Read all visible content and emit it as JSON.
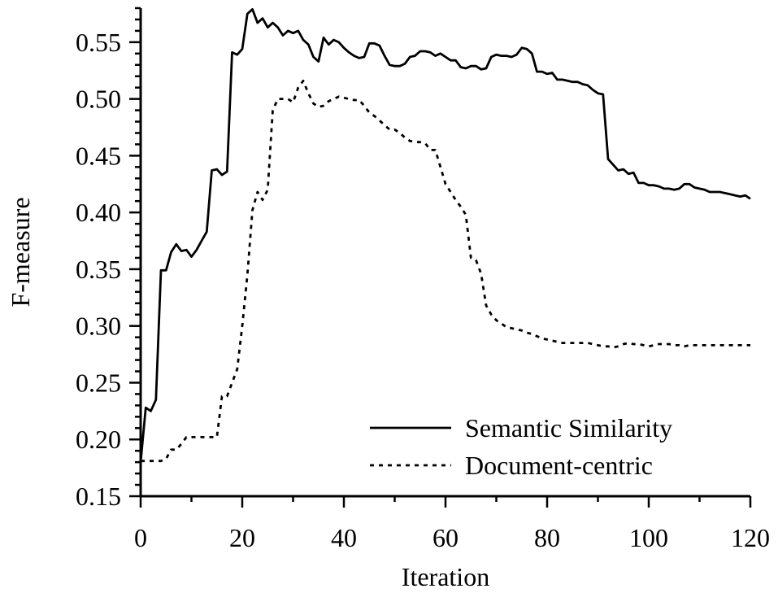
{
  "chart_data": {
    "type": "line",
    "title": "",
    "xlabel": "Iteration",
    "ylabel": "F-measure",
    "xlim": [
      0,
      120
    ],
    "ylim": [
      0.15,
      0.58
    ],
    "x_ticks": [
      0,
      20,
      40,
      60,
      80,
      100,
      120
    ],
    "x_tick_labels": [
      "0",
      "20",
      "40",
      "60",
      "80",
      "100",
      "120"
    ],
    "y_ticks": [
      0.15,
      0.2,
      0.25,
      0.3,
      0.35,
      0.4,
      0.45,
      0.5,
      0.55
    ],
    "y_tick_labels": [
      "0.15",
      "0.20",
      "0.25",
      "0.30",
      "0.35",
      "0.40",
      "0.45",
      "0.50",
      "0.55"
    ],
    "grid": false,
    "legend_position": "bottom-right",
    "series": [
      {
        "name": "Semantic Similarity",
        "style": "solid",
        "color": "#000000",
        "x": [
          0,
          1,
          2,
          3,
          4,
          5,
          6,
          7,
          8,
          9,
          10,
          11,
          12,
          13,
          14,
          15,
          16,
          17,
          18,
          19,
          20,
          21,
          22,
          23,
          24,
          25,
          26,
          27,
          28,
          29,
          30,
          31,
          32,
          33,
          34,
          35,
          36,
          37,
          38,
          39,
          40,
          41,
          42,
          43,
          44,
          45,
          46,
          47,
          48,
          49,
          50,
          51,
          52,
          53,
          54,
          55,
          56,
          57,
          58,
          59,
          60,
          61,
          62,
          63,
          64,
          65,
          66,
          67,
          68,
          69,
          70,
          71,
          72,
          73,
          74,
          75,
          76,
          77,
          78,
          79,
          80,
          81,
          82,
          83,
          84,
          85,
          86,
          87,
          88,
          89,
          90,
          91,
          92,
          93,
          94,
          95,
          96,
          97,
          98,
          99,
          100,
          101,
          102,
          103,
          104,
          105,
          106,
          107,
          108,
          109,
          110,
          111,
          112,
          113,
          114,
          115,
          116,
          117,
          118,
          119,
          120
        ],
        "y": [
          0.18,
          0.228,
          0.225,
          0.235,
          0.349,
          0.349,
          0.365,
          0.372,
          0.366,
          0.367,
          0.361,
          0.367,
          0.375,
          0.383,
          0.437,
          0.438,
          0.433,
          0.436,
          0.541,
          0.539,
          0.544,
          0.575,
          0.579,
          0.567,
          0.571,
          0.563,
          0.567,
          0.563,
          0.556,
          0.56,
          0.558,
          0.56,
          0.552,
          0.548,
          0.537,
          0.533,
          0.554,
          0.548,
          0.552,
          0.55,
          0.545,
          0.541,
          0.538,
          0.536,
          0.537,
          0.549,
          0.549,
          0.547,
          0.538,
          0.53,
          0.529,
          0.529,
          0.531,
          0.537,
          0.538,
          0.542,
          0.542,
          0.541,
          0.538,
          0.54,
          0.537,
          0.534,
          0.534,
          0.528,
          0.527,
          0.529,
          0.529,
          0.526,
          0.527,
          0.537,
          0.539,
          0.538,
          0.538,
          0.537,
          0.539,
          0.545,
          0.544,
          0.54,
          0.524,
          0.524,
          0.522,
          0.523,
          0.517,
          0.517,
          0.516,
          0.515,
          0.515,
          0.513,
          0.512,
          0.508,
          0.505,
          0.504,
          0.447,
          0.442,
          0.437,
          0.438,
          0.434,
          0.435,
          0.426,
          0.426,
          0.424,
          0.424,
          0.423,
          0.421,
          0.421,
          0.42,
          0.421,
          0.425,
          0.425,
          0.422,
          0.421,
          0.42,
          0.418,
          0.418,
          0.418,
          0.417,
          0.416,
          0.415,
          0.414,
          0.415,
          0.412
        ]
      },
      {
        "name": "Document-centric",
        "style": "dotted",
        "color": "#000000",
        "x": [
          0,
          1,
          2,
          3,
          4,
          5,
          6,
          7,
          8,
          9,
          10,
          11,
          12,
          13,
          14,
          15,
          16,
          17,
          18,
          19,
          20,
          21,
          22,
          23,
          24,
          25,
          26,
          27,
          28,
          29,
          30,
          31,
          32,
          33,
          34,
          35,
          36,
          37,
          38,
          39,
          40,
          41,
          42,
          43,
          44,
          45,
          46,
          47,
          48,
          49,
          50,
          51,
          52,
          53,
          54,
          55,
          56,
          57,
          58,
          59,
          60,
          61,
          62,
          63,
          64,
          65,
          66,
          67,
          68,
          69,
          70,
          71,
          72,
          73,
          74,
          75,
          76,
          77,
          78,
          79,
          80,
          81,
          82,
          83,
          84,
          85,
          86,
          87,
          88,
          89,
          90,
          91,
          92,
          93,
          94,
          95,
          96,
          97,
          98,
          99,
          100,
          101,
          102,
          103,
          104,
          105,
          106,
          107,
          108,
          109,
          110,
          111,
          112,
          113,
          114,
          115,
          116,
          117,
          118,
          119,
          120
        ],
        "y": [
          0.181,
          0.181,
          0.181,
          0.181,
          0.181,
          0.183,
          0.191,
          0.191,
          0.196,
          0.202,
          0.202,
          0.202,
          0.202,
          0.202,
          0.202,
          0.202,
          0.238,
          0.238,
          0.25,
          0.262,
          0.3,
          0.345,
          0.402,
          0.418,
          0.411,
          0.42,
          0.49,
          0.5,
          0.5,
          0.5,
          0.497,
          0.51,
          0.516,
          0.505,
          0.496,
          0.493,
          0.494,
          0.498,
          0.5,
          0.502,
          0.501,
          0.5,
          0.499,
          0.499,
          0.494,
          0.488,
          0.485,
          0.481,
          0.477,
          0.473,
          0.473,
          0.47,
          0.466,
          0.463,
          0.462,
          0.462,
          0.461,
          0.455,
          0.455,
          0.44,
          0.425,
          0.418,
          0.411,
          0.405,
          0.398,
          0.36,
          0.358,
          0.346,
          0.318,
          0.31,
          0.305,
          0.302,
          0.299,
          0.298,
          0.297,
          0.296,
          0.294,
          0.293,
          0.291,
          0.289,
          0.288,
          0.287,
          0.286,
          0.285,
          0.285,
          0.285,
          0.285,
          0.285,
          0.285,
          0.284,
          0.283,
          0.282,
          0.282,
          0.281,
          0.282,
          0.284,
          0.285,
          0.284,
          0.284,
          0.283,
          0.282,
          0.283,
          0.284,
          0.284,
          0.284,
          0.283,
          0.283,
          0.282,
          0.283,
          0.283,
          0.283,
          0.283,
          0.283,
          0.283,
          0.283,
          0.283,
          0.283,
          0.283,
          0.283,
          0.283,
          0.283
        ]
      }
    ]
  }
}
